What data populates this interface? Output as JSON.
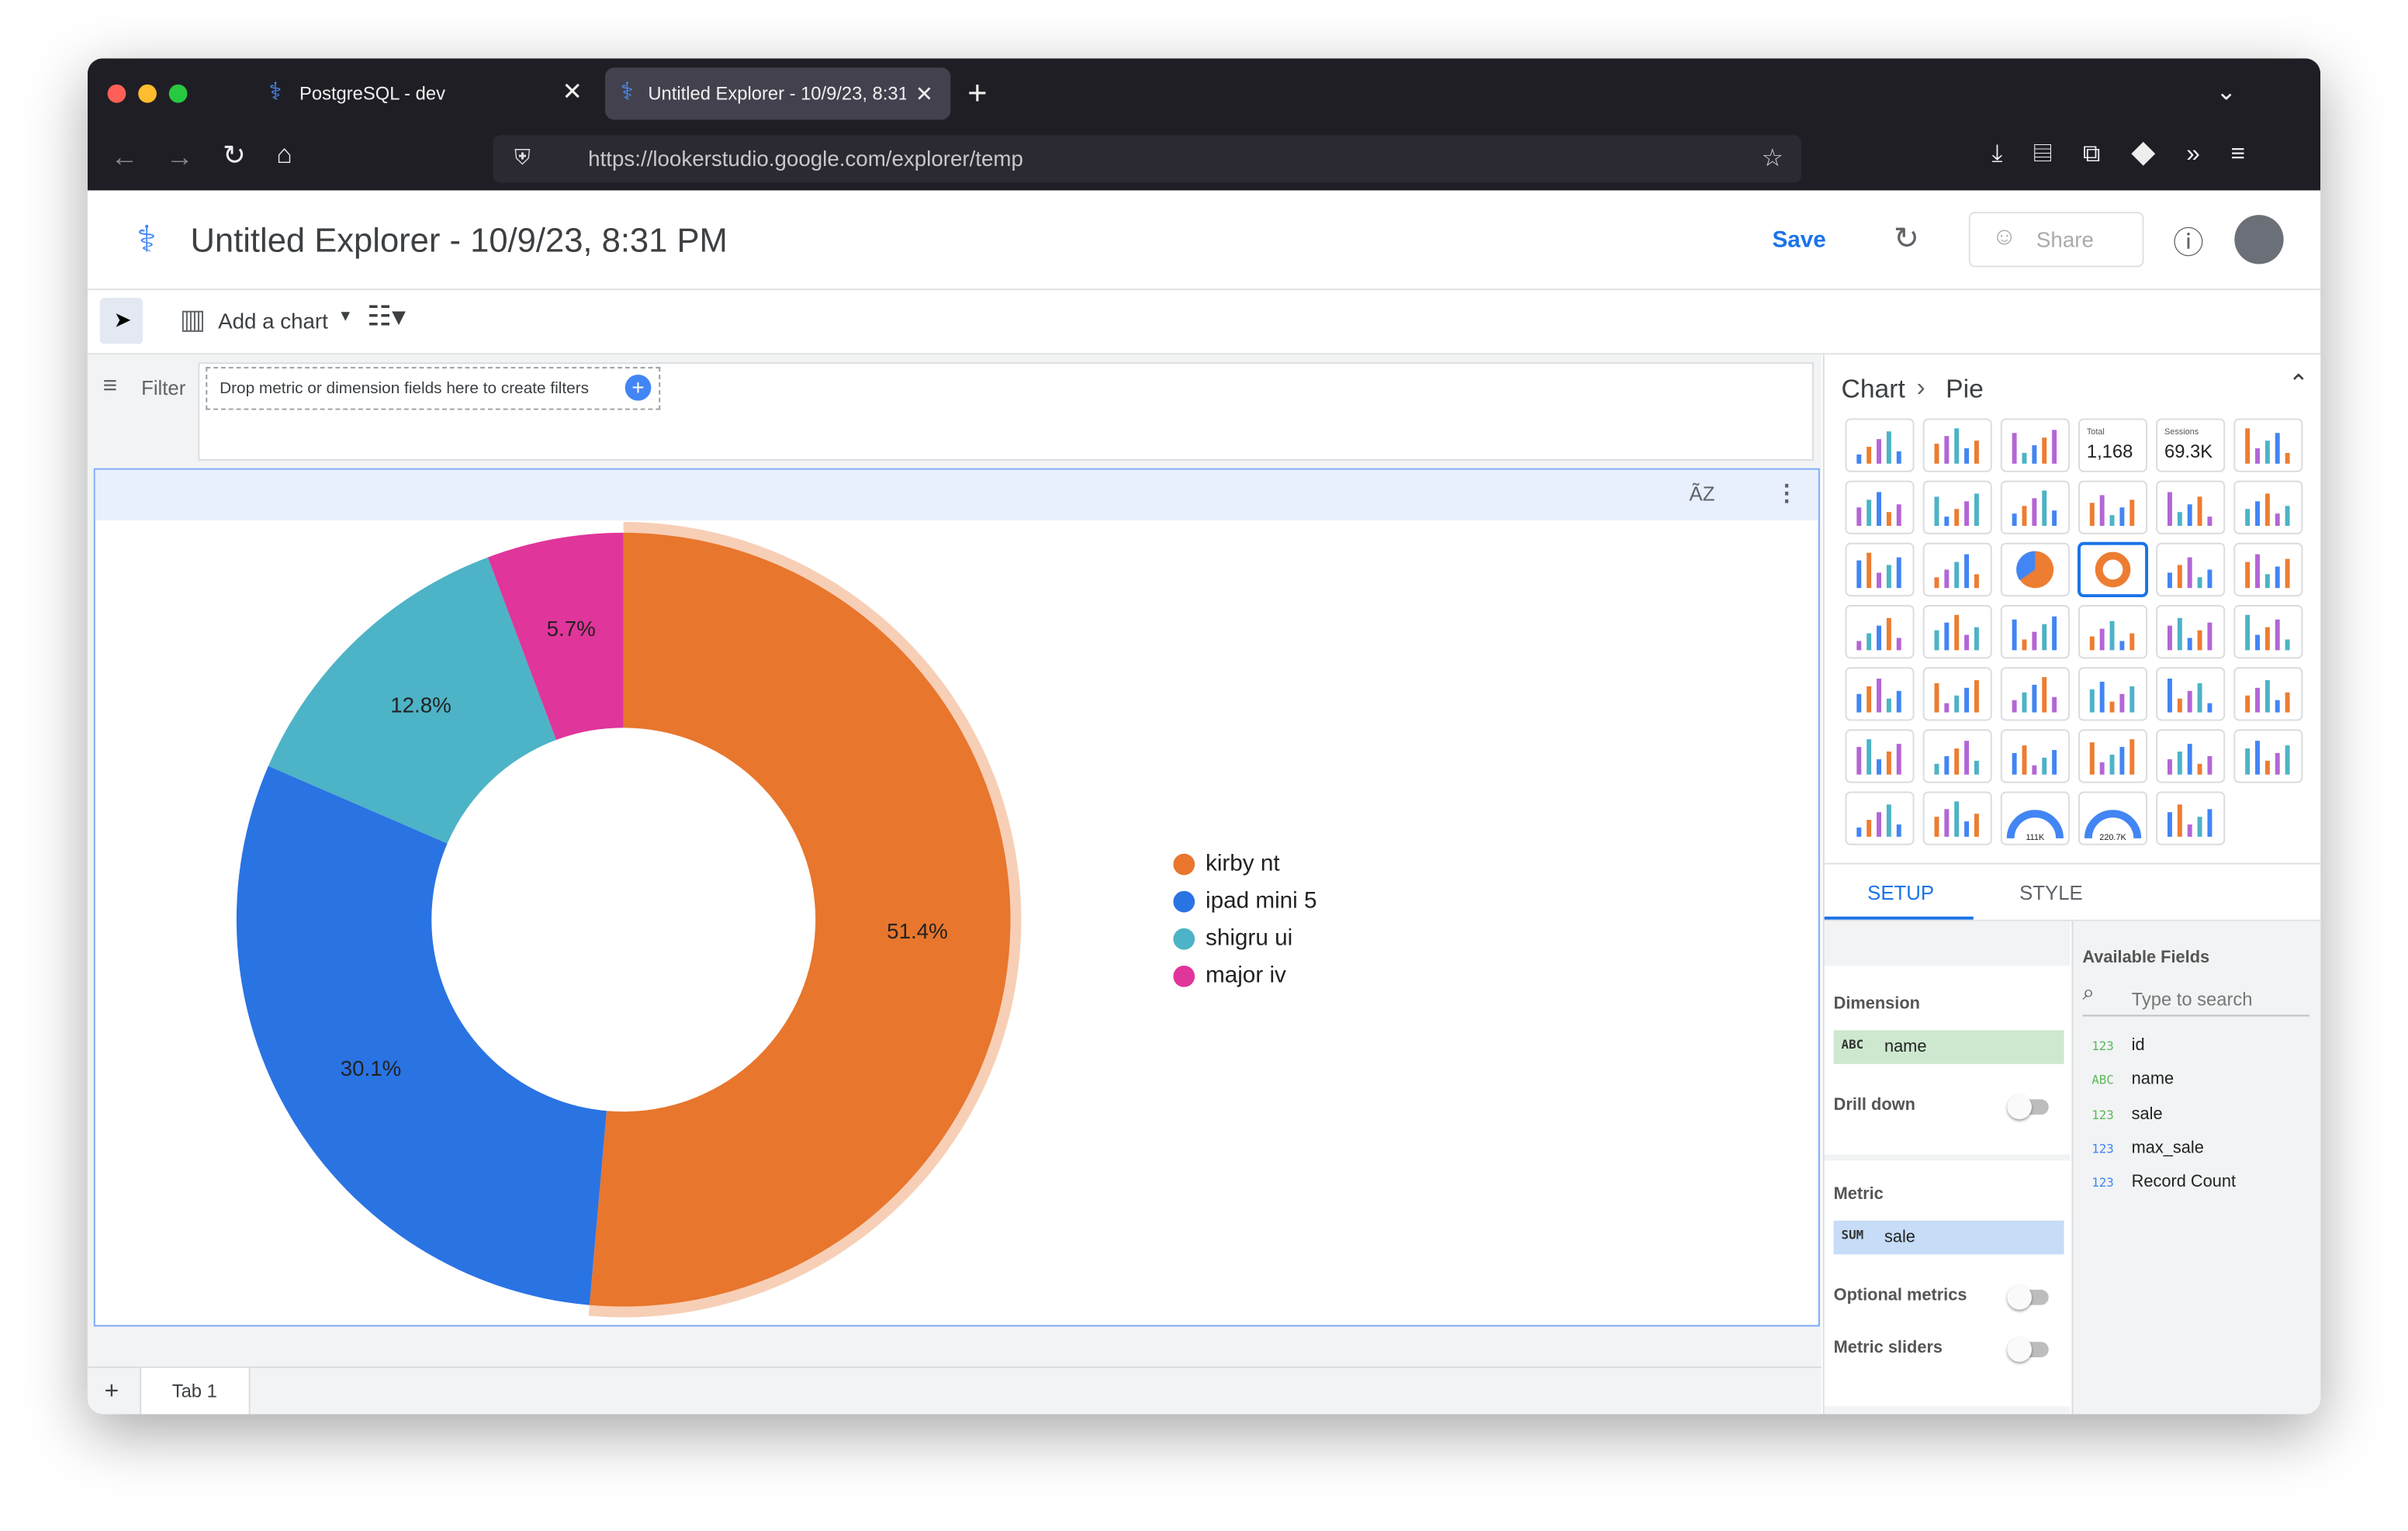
{
  "browser": {
    "tabs": [
      "PostgreSQL - dev",
      "Untitled Explorer - 10/9/23, 8:31"
    ],
    "url": "https://lookerstudio.google.com/explorer/temp"
  },
  "header": {
    "title": "Untitled Explorer - 10/9/23, 8:31 PM",
    "save": "Save",
    "share": "Share"
  },
  "toolbar": {
    "add_chart": "Add a chart"
  },
  "filter": {
    "label": "Filter",
    "placeholder": "Drop metric or dimension fields here to create filters"
  },
  "chart_data": {
    "type": "pie",
    "donut": true,
    "legend": "right",
    "categories": [
      "kirby nt",
      "ipad mini 5",
      "shigru ui",
      "major iv"
    ],
    "values": [
      51.4,
      30.1,
      12.8,
      5.7
    ],
    "value_labels": [
      "51.4%",
      "30.1%",
      "12.8%",
      "5.7%"
    ],
    "colors": [
      "#e8762d",
      "#2a73e3",
      "#4db3c6",
      "#e0359a"
    ]
  },
  "panel": {
    "breadcrumb": [
      "Chart",
      "Pie"
    ],
    "thumbnails": [
      {
        "label": "Total",
        "value": "1,168"
      },
      {
        "label": "Sessions",
        "value": "69.3K"
      }
    ],
    "gauges": [
      "111K",
      "220.7K"
    ],
    "tabs": [
      "SETUP",
      "STYLE"
    ],
    "dimension": {
      "title": "Dimension",
      "type": "ABC",
      "field": "name"
    },
    "drill_down": "Drill down",
    "metric": {
      "title": "Metric",
      "agg": "SUM",
      "field": "sale"
    },
    "optional_metrics": "Optional metrics",
    "metric_sliders": "Metric sliders",
    "available_fields": {
      "title": "Available Fields",
      "search": "Type to search",
      "fields": [
        {
          "type": "123",
          "name": "id"
        },
        {
          "type": "ABC",
          "name": "name"
        },
        {
          "type": "123",
          "name": "sale"
        },
        {
          "type": "123",
          "name": "max_sale"
        },
        {
          "type": "123",
          "name": "Record Count"
        }
      ]
    }
  },
  "page_tabs": [
    "Tab 1"
  ]
}
